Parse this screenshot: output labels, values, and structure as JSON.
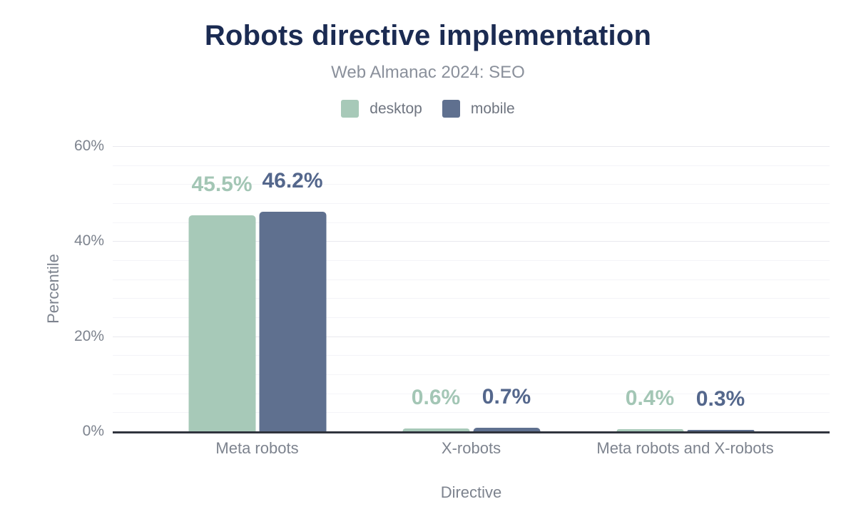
{
  "header": {
    "title": "Robots directive implementation",
    "subtitle": "Web Almanac 2024: SEO"
  },
  "axes": {
    "y_title": "Percentile",
    "x_title": "Directive"
  },
  "colors": {
    "title": "#1b2b52",
    "subtitle": "#8a909b",
    "axis_text": "#7d838e",
    "legend_text": "#6f7580",
    "grid_minor": "#f4f4f8",
    "grid_major": "#e8e8ee",
    "axis_line": "#30343d",
    "desktop": "#a7c9b8",
    "mobile": "#5f708f"
  },
  "chart_data": {
    "type": "bar",
    "title": "Robots directive implementation",
    "subtitle": "Web Almanac 2024: SEO",
    "xlabel": "Directive",
    "ylabel": "Percentile",
    "categories": [
      "Meta robots",
      "X-robots",
      "Meta robots and X-robots"
    ],
    "series": [
      {
        "name": "desktop",
        "color": "#a7c9b8",
        "label_color": "#a3c6b5",
        "values": [
          45.5,
          0.6,
          0.4
        ],
        "labels": [
          "45.5%",
          "0.6%",
          "0.4%"
        ]
      },
      {
        "name": "mobile",
        "color": "#5f708f",
        "label_color": "#54678c",
        "values": [
          46.2,
          0.7,
          0.3
        ],
        "labels": [
          "46.2%",
          "0.7%",
          "0.3%"
        ]
      }
    ],
    "ylim": [
      0,
      60
    ],
    "yticks": [
      {
        "value": 0,
        "label": "0%"
      },
      {
        "value": 20,
        "label": "20%"
      },
      {
        "value": 40,
        "label": "40%"
      },
      {
        "value": 60,
        "label": "60%"
      }
    ],
    "y_minor_step": 4,
    "y_major_step": 20,
    "grid": true,
    "legend_position": "top"
  }
}
